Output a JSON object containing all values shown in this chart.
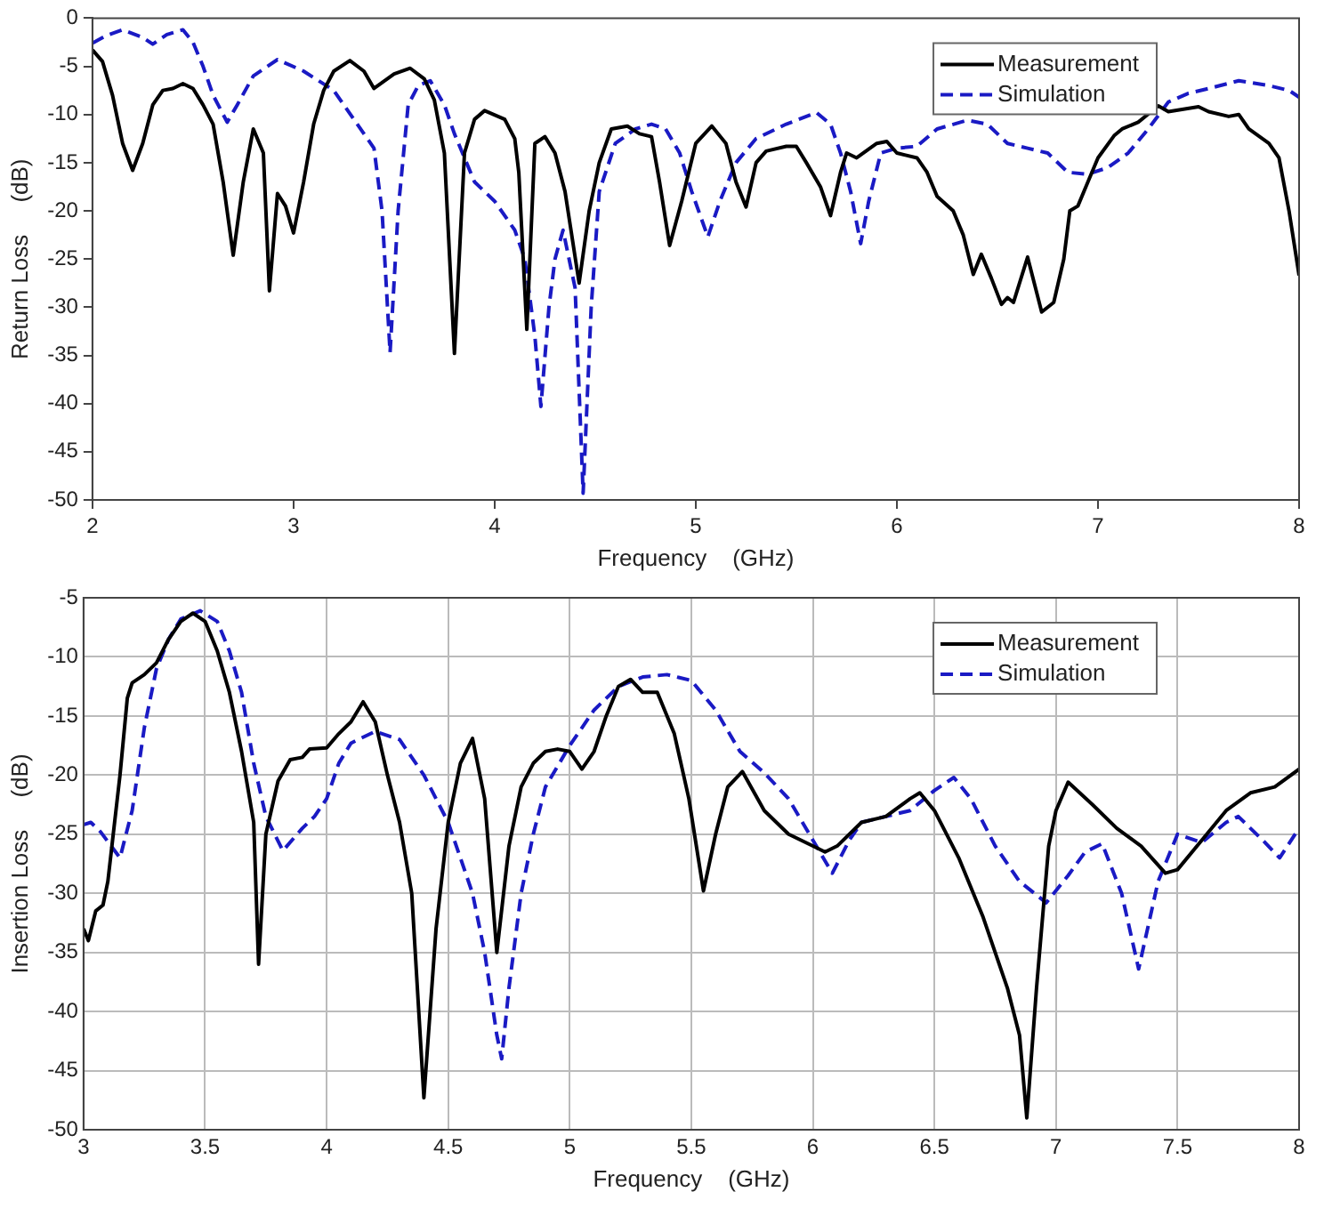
{
  "chart_data": [
    {
      "type": "line",
      "xlabel": "Frequency    (GHz)",
      "ylabel": "Return Loss     (dB)",
      "xlim": [
        2,
        8
      ],
      "ylim": [
        -50,
        0
      ],
      "xticks": [
        2,
        3,
        4,
        5,
        6,
        7,
        8
      ],
      "yticks": [
        0,
        -5,
        -10,
        -15,
        -20,
        -25,
        -30,
        -35,
        -40,
        -45,
        -50
      ],
      "grid": false,
      "legend": "top right",
      "marker": "none",
      "series": [
        {
          "name": "Measurement",
          "color": "#000000",
          "line_style": "solid",
          "x": [
            2.0,
            2.05,
            2.1,
            2.15,
            2.2,
            2.25,
            2.3,
            2.35,
            2.4,
            2.45,
            2.5,
            2.55,
            2.6,
            2.65,
            2.7,
            2.75,
            2.8,
            2.85,
            2.88,
            2.92,
            2.96,
            3.0,
            3.05,
            3.1,
            3.15,
            3.2,
            3.28,
            3.35,
            3.4,
            3.5,
            3.58,
            3.65,
            3.7,
            3.75,
            3.8,
            3.85,
            3.9,
            3.95,
            4.05,
            4.1,
            4.12,
            4.16,
            4.2,
            4.25,
            4.3,
            4.35,
            4.42,
            4.47,
            4.52,
            4.58,
            4.66,
            4.72,
            4.78,
            4.82,
            4.87,
            4.93,
            5.0,
            5.08,
            5.15,
            5.2,
            5.25,
            5.3,
            5.35,
            5.45,
            5.5,
            5.55,
            5.62,
            5.67,
            5.72,
            5.75,
            5.8,
            5.9,
            5.95,
            6.0,
            6.1,
            6.15,
            6.2,
            6.28,
            6.33,
            6.38,
            6.42,
            6.47,
            6.52,
            6.55,
            6.58,
            6.65,
            6.72,
            6.78,
            6.83,
            6.86,
            6.9,
            6.95,
            7.0,
            7.08,
            7.12,
            7.2,
            7.3,
            7.35,
            7.5,
            7.55,
            7.65,
            7.7,
            7.75,
            7.85,
            7.9,
            7.95,
            8.0
          ],
          "values": [
            -3.3,
            -4.5,
            -8,
            -13,
            -15.8,
            -13,
            -9,
            -7.5,
            -7.3,
            -6.8,
            -7.3,
            -9,
            -11,
            -17,
            -24.6,
            -17,
            -11.5,
            -14,
            -28.3,
            -18.2,
            -19.5,
            -22.3,
            -17,
            -11,
            -7.5,
            -5.5,
            -4.4,
            -5.5,
            -7.3,
            -5.8,
            -5.2,
            -6.3,
            -8.5,
            -14,
            -34.8,
            -14,
            -10.5,
            -9.6,
            -10.5,
            -12.5,
            -16,
            -32.3,
            -13,
            -12.3,
            -14,
            -18,
            -27.5,
            -20,
            -15,
            -11.5,
            -11.2,
            -12,
            -12.3,
            -17,
            -23.6,
            -19,
            -13,
            -11.2,
            -13,
            -17,
            -19.6,
            -15,
            -13.8,
            -13.3,
            -13.3,
            -15,
            -17.5,
            -20.5,
            -16,
            -14,
            -14.5,
            -13,
            -12.8,
            -14,
            -14.5,
            -16,
            -18.5,
            -20,
            -22.5,
            -26.6,
            -24.5,
            -27,
            -29.7,
            -29,
            -29.5,
            -24.8,
            -30.5,
            -29.5,
            -25,
            -20,
            -19.5,
            -17,
            -14.5,
            -12.2,
            -11.5,
            -10.8,
            -9.1,
            -9.7,
            -9.2,
            -9.7,
            -10.2,
            -10,
            -11.5,
            -13,
            -14.5,
            -20,
            -26.7
          ]
        },
        {
          "name": "Simulation",
          "color": "#1a1ac4",
          "line_style": "dashed",
          "x": [
            2.0,
            2.07,
            2.15,
            2.25,
            2.3,
            2.37,
            2.45,
            2.5,
            2.55,
            2.6,
            2.67,
            2.72,
            2.8,
            2.92,
            3.05,
            3.2,
            3.3,
            3.4,
            3.44,
            3.48,
            3.52,
            3.57,
            3.62,
            3.68,
            3.75,
            3.8,
            3.9,
            4.0,
            4.1,
            4.15,
            4.2,
            4.23,
            4.27,
            4.3,
            4.34,
            4.4,
            4.44,
            4.48,
            4.52,
            4.6,
            4.7,
            4.78,
            4.85,
            4.92,
            4.98,
            5.06,
            5.12,
            5.2,
            5.3,
            5.45,
            5.6,
            5.67,
            5.72,
            5.77,
            5.82,
            5.86,
            5.92,
            6.0,
            6.1,
            6.2,
            6.35,
            6.45,
            6.55,
            6.65,
            6.75,
            6.85,
            6.95,
            7.05,
            7.15,
            7.25,
            7.35,
            7.45,
            7.55,
            7.7,
            7.85,
            7.95,
            8.0
          ],
          "values": [
            -2.6,
            -1.8,
            -1.2,
            -2,
            -2.7,
            -1.7,
            -1.2,
            -2.5,
            -5,
            -8,
            -10.8,
            -9,
            -6,
            -4.3,
            -5.5,
            -7.5,
            -10.5,
            -13.5,
            -20,
            -34.7,
            -20,
            -9,
            -7,
            -6.5,
            -9,
            -12,
            -17,
            -19,
            -22,
            -25,
            -33,
            -40.3,
            -30,
            -25,
            -22,
            -28,
            -49.3,
            -30,
            -18,
            -13,
            -11.5,
            -11,
            -11.5,
            -14,
            -18,
            -22.7,
            -19,
            -15,
            -12.5,
            -11,
            -9.8,
            -11,
            -14,
            -18,
            -23.4,
            -19,
            -14,
            -13.5,
            -13.3,
            -11.5,
            -10.6,
            -11,
            -13,
            -13.5,
            -14,
            -16,
            -16.2,
            -15.5,
            -14,
            -11.5,
            -8.7,
            -7.8,
            -7.3,
            -6.5,
            -7,
            -7.5,
            -8.2
          ]
        }
      ]
    },
    {
      "type": "line",
      "xlabel": "Frequency    (GHz)",
      "ylabel": "Insertion Loss     (dB)",
      "xlim": [
        3,
        8
      ],
      "ylim": [
        -50,
        -5
      ],
      "xticks": [
        3,
        3.5,
        4,
        4.5,
        5,
        5.5,
        6,
        6.5,
        7,
        7.5,
        8
      ],
      "yticks": [
        -5,
        -10,
        -15,
        -20,
        -25,
        -30,
        -35,
        -40,
        -45,
        -50
      ],
      "grid": true,
      "legend": "top right",
      "marker": "none",
      "series": [
        {
          "name": "Measurement",
          "color": "#000000",
          "line_style": "solid",
          "x": [
            3.0,
            3.02,
            3.05,
            3.08,
            3.1,
            3.15,
            3.18,
            3.2,
            3.25,
            3.3,
            3.35,
            3.4,
            3.45,
            3.5,
            3.55,
            3.6,
            3.65,
            3.7,
            3.72,
            3.75,
            3.8,
            3.85,
            3.9,
            3.93,
            4.0,
            4.05,
            4.1,
            4.15,
            4.2,
            4.25,
            4.3,
            4.35,
            4.4,
            4.45,
            4.5,
            4.55,
            4.6,
            4.65,
            4.7,
            4.75,
            4.8,
            4.85,
            4.9,
            4.95,
            5.0,
            5.05,
            5.1,
            5.15,
            5.2,
            5.25,
            5.3,
            5.36,
            5.43,
            5.49,
            5.55,
            5.6,
            5.65,
            5.71,
            5.8,
            5.9,
            6.0,
            6.05,
            6.1,
            6.2,
            6.3,
            6.4,
            6.44,
            6.5,
            6.6,
            6.7,
            6.8,
            6.85,
            6.88,
            6.92,
            6.97,
            7.0,
            7.05,
            7.15,
            7.25,
            7.35,
            7.45,
            7.5,
            7.6,
            7.7,
            7.8,
            7.9,
            8.0
          ],
          "values": [
            -33,
            -34,
            -31.5,
            -31,
            -29,
            -20,
            -13.5,
            -12.2,
            -11.5,
            -10.5,
            -8.5,
            -7,
            -6.3,
            -7,
            -9.5,
            -13,
            -18,
            -24,
            -36,
            -25,
            -20.5,
            -18.7,
            -18.5,
            -17.8,
            -17.7,
            -16.5,
            -15.5,
            -13.8,
            -15.5,
            -20,
            -24,
            -30,
            -47.3,
            -33,
            -24,
            -19,
            -16.9,
            -22,
            -35,
            -26,
            -21,
            -19,
            -18,
            -17.8,
            -18,
            -19.5,
            -18,
            -15,
            -12.5,
            -11.9,
            -13,
            -13,
            -16.5,
            -22,
            -29.8,
            -25,
            -21,
            -19.7,
            -23,
            -25,
            -26,
            -26.5,
            -26,
            -24,
            -23.5,
            -22,
            -21.5,
            -23,
            -27,
            -32,
            -38,
            -42,
            -49,
            -38,
            -26,
            -23,
            -20.6,
            -22.5,
            -24.5,
            -26,
            -28.3,
            -28,
            -25.5,
            -23,
            -21.5,
            -21,
            -19.5
          ]
        },
        {
          "name": "Simulation",
          "color": "#1a1ac4",
          "line_style": "dashed",
          "x": [
            3.0,
            3.03,
            3.07,
            3.15,
            3.2,
            3.25,
            3.3,
            3.35,
            3.4,
            3.48,
            3.55,
            3.6,
            3.65,
            3.7,
            3.75,
            3.82,
            3.9,
            3.95,
            4.0,
            4.05,
            4.1,
            4.2,
            4.3,
            4.4,
            4.5,
            4.55,
            4.6,
            4.65,
            4.7,
            4.72,
            4.75,
            4.8,
            4.85,
            4.9,
            5.0,
            5.1,
            5.2,
            5.3,
            5.4,
            5.5,
            5.6,
            5.7,
            5.8,
            5.9,
            6.0,
            6.08,
            6.15,
            6.2,
            6.3,
            6.4,
            6.5,
            6.58,
            6.65,
            6.75,
            6.85,
            6.96,
            7.05,
            7.12,
            7.19,
            7.27,
            7.34,
            7.42,
            7.5,
            7.6,
            7.7,
            7.75,
            7.85,
            7.92,
            8.0
          ],
          "values": [
            -24.2,
            -24,
            -24.8,
            -27,
            -23,
            -16,
            -11,
            -8.5,
            -6.8,
            -6.1,
            -7,
            -9.5,
            -13,
            -19,
            -23.5,
            -26.4,
            -24.5,
            -23.5,
            -22,
            -19,
            -17.3,
            -16.3,
            -17,
            -20,
            -24,
            -27,
            -30,
            -35,
            -42,
            -44,
            -38,
            -30,
            -25,
            -21,
            -17.5,
            -14.5,
            -12.5,
            -11.7,
            -11.5,
            -12,
            -14.5,
            -18,
            -19.8,
            -22,
            -25.5,
            -28.3,
            -25.5,
            -24,
            -23.5,
            -23,
            -21.3,
            -20.2,
            -22,
            -26,
            -29,
            -30.8,
            -28.5,
            -26.5,
            -25.8,
            -30,
            -36.4,
            -29,
            -25,
            -25.7,
            -24,
            -23.5,
            -25.5,
            -27,
            -24.5
          ]
        }
      ]
    }
  ]
}
